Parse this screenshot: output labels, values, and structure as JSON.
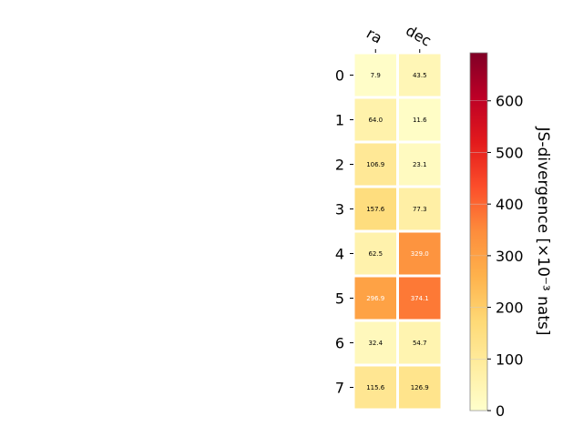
{
  "chart_data": {
    "type": "heatmap",
    "title": "",
    "columns": [
      "ra",
      "dec"
    ],
    "rows": [
      "0",
      "1",
      "2",
      "3",
      "4",
      "5",
      "6",
      "7"
    ],
    "values": [
      [
        7.9,
        43.5
      ],
      [
        64.0,
        11.6
      ],
      [
        106.9,
        23.1
      ],
      [
        157.6,
        77.3
      ],
      [
        62.5,
        329.0
      ],
      [
        296.9,
        374.1
      ],
      [
        32.4,
        54.7
      ],
      [
        115.6,
        126.9
      ]
    ],
    "cell_labels": [
      [
        "7.9",
        "43.5"
      ],
      [
        "64.0",
        "11.6"
      ],
      [
        "106.9",
        "23.1"
      ],
      [
        "157.6",
        "77.3"
      ],
      [
        "62.5",
        "329.0"
      ],
      [
        "296.9",
        "374.1"
      ],
      [
        "32.4",
        "54.7"
      ],
      [
        "115.6",
        "126.9"
      ]
    ],
    "colorbar": {
      "label": "JS-divergence [×10⁻³ nats]",
      "range": [
        0,
        693
      ],
      "ticks": [
        0,
        100,
        200,
        300,
        400,
        500,
        600
      ],
      "tick_labels": [
        "0",
        "100",
        "200",
        "300",
        "400",
        "500",
        "600"
      ],
      "colormap": "YlOrRd"
    },
    "colors": {
      "colormap_stops": [
        "#ffffcc",
        "#ffeda0",
        "#fed976",
        "#feb24c",
        "#fd8d3c",
        "#fc4e2a",
        "#e31a1c",
        "#bd0026",
        "#800026"
      ],
      "dark_text": "#000000",
      "light_text": "#ffffff"
    }
  }
}
